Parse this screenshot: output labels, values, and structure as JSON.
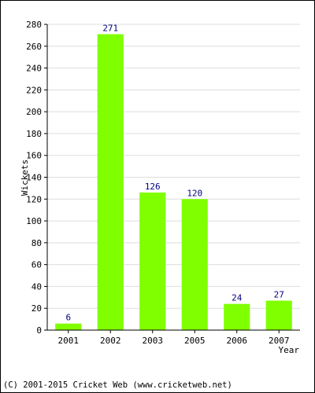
{
  "chart_data": {
    "type": "bar",
    "categories": [
      "2001",
      "2002",
      "2003",
      "2005",
      "2006",
      "2007"
    ],
    "values": [
      6,
      271,
      126,
      120,
      24,
      27
    ],
    "xlabel": "Year",
    "ylabel": "Wickets",
    "ylim": [
      0,
      280
    ],
    "yticks": [
      0,
      20,
      40,
      60,
      80,
      100,
      120,
      140,
      160,
      180,
      200,
      220,
      240,
      260,
      280
    ],
    "grid": true,
    "bar_color": "#80ff00",
    "grid_color": "#dddddd",
    "label_color": "#000080"
  },
  "footer": {
    "copyright": "(C) 2001-2015 Cricket Web (www.cricketweb.net)"
  }
}
